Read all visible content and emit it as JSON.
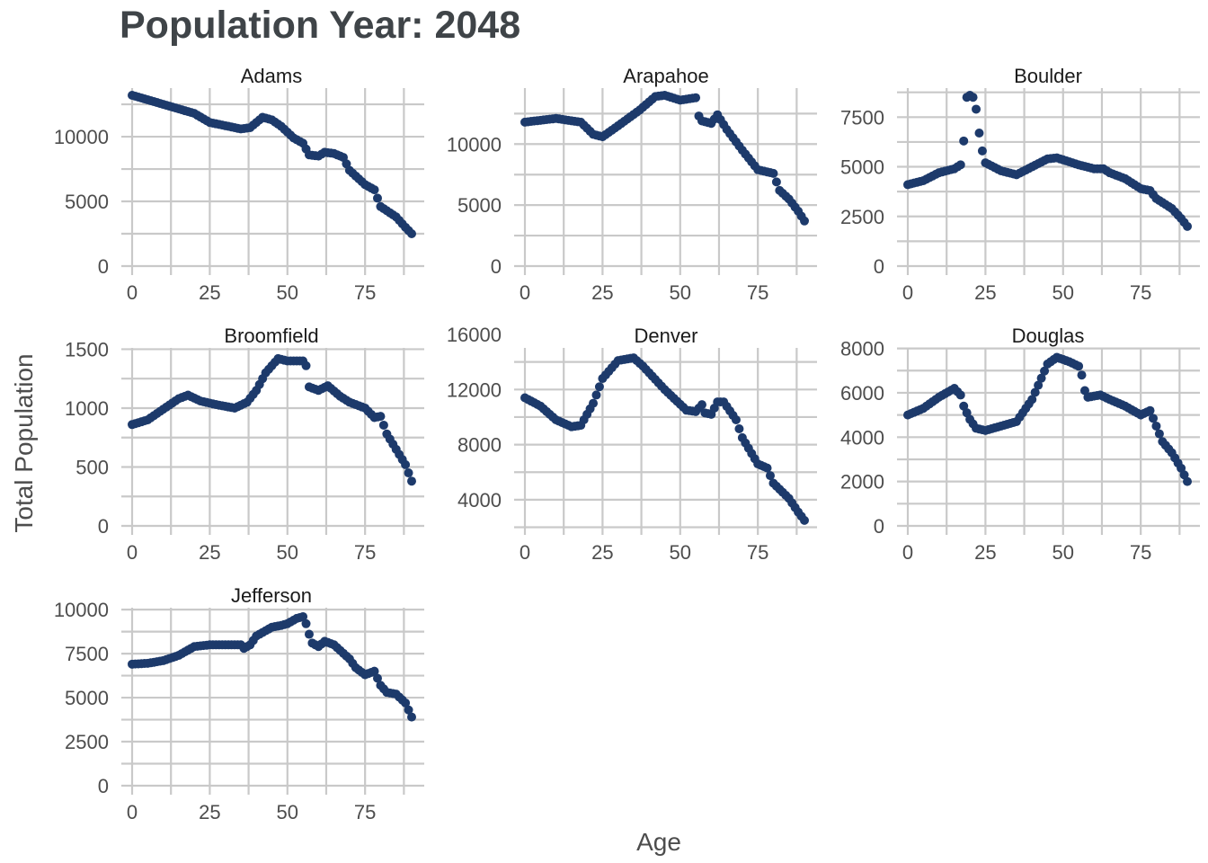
{
  "title": "Population Year:  2048",
  "xlabel": "Age",
  "ylabel": "Total Population",
  "colors": {
    "point": "#1d3a6b",
    "grid": "#c9c9c9",
    "title": "#3f4448",
    "tick_text": "#4d4d4d"
  },
  "chart_data": [
    {
      "type": "scatter",
      "panel": "Adams",
      "xlim": [
        0,
        90
      ],
      "ylim": [
        0,
        13200
      ],
      "xticks": [
        0,
        25,
        50,
        75
      ],
      "yticks": [
        0,
        5000,
        10000
      ],
      "ytick_labels": [
        "0",
        "5000",
        "10000"
      ],
      "points": [
        [
          0,
          13200
        ],
        [
          10,
          12500
        ],
        [
          20,
          11800
        ],
        [
          25,
          11100
        ],
        [
          35,
          10600
        ],
        [
          38,
          10700
        ],
        [
          42,
          11500
        ],
        [
          45,
          11300
        ],
        [
          48,
          10800
        ],
        [
          52,
          9900
        ],
        [
          55,
          9500
        ],
        [
          57,
          8600
        ],
        [
          60,
          8500
        ],
        [
          62,
          8800
        ],
        [
          65,
          8700
        ],
        [
          68,
          8400
        ],
        [
          70,
          7400
        ],
        [
          75,
          6300
        ],
        [
          78,
          5900
        ],
        [
          80,
          4600
        ],
        [
          85,
          3800
        ],
        [
          88,
          3000
        ],
        [
          90,
          2500
        ]
      ]
    },
    {
      "type": "scatter",
      "panel": "Arapahoe",
      "xlim": [
        0,
        90
      ],
      "ylim": [
        0,
        14000
      ],
      "xticks": [
        0,
        25,
        50,
        75
      ],
      "yticks": [
        0,
        5000,
        10000
      ],
      "ytick_labels": [
        "0",
        "5000",
        "10000"
      ],
      "points": [
        [
          0,
          11800
        ],
        [
          10,
          12100
        ],
        [
          18,
          11800
        ],
        [
          22,
          10800
        ],
        [
          25,
          10600
        ],
        [
          30,
          11500
        ],
        [
          37,
          12800
        ],
        [
          42,
          13900
        ],
        [
          45,
          14000
        ],
        [
          50,
          13600
        ],
        [
          55,
          13800
        ],
        [
          56,
          12300
        ],
        [
          57,
          11900
        ],
        [
          60,
          11700
        ],
        [
          62,
          12400
        ],
        [
          65,
          11200
        ],
        [
          70,
          9500
        ],
        [
          75,
          7900
        ],
        [
          80,
          7600
        ],
        [
          82,
          6200
        ],
        [
          85,
          5500
        ],
        [
          88,
          4500
        ],
        [
          90,
          3700
        ]
      ]
    },
    {
      "type": "scatter",
      "panel": "Boulder",
      "xlim": [
        0,
        90
      ],
      "ylim": [
        0,
        8600
      ],
      "xticks": [
        0,
        25,
        50,
        75
      ],
      "yticks": [
        0,
        2500,
        5000,
        7500
      ],
      "ytick_labels": [
        "0",
        "2500",
        "5000",
        "7500"
      ],
      "points": [
        [
          0,
          4100
        ],
        [
          5,
          4300
        ],
        [
          10,
          4700
        ],
        [
          15,
          4900
        ],
        [
          17,
          5100
        ],
        [
          18,
          6300
        ],
        [
          19,
          8500
        ],
        [
          20,
          8600
        ],
        [
          21,
          8500
        ],
        [
          22,
          7900
        ],
        [
          23,
          6700
        ],
        [
          24,
          5800
        ],
        [
          25,
          5200
        ],
        [
          30,
          4800
        ],
        [
          35,
          4600
        ],
        [
          40,
          5000
        ],
        [
          45,
          5400
        ],
        [
          48,
          5450
        ],
        [
          55,
          5100
        ],
        [
          60,
          4900
        ],
        [
          63,
          4900
        ],
        [
          65,
          4700
        ],
        [
          70,
          4400
        ],
        [
          75,
          3900
        ],
        [
          78,
          3800
        ],
        [
          80,
          3400
        ],
        [
          85,
          2900
        ],
        [
          88,
          2400
        ],
        [
          90,
          2000
        ]
      ]
    },
    {
      "type": "scatter",
      "panel": "Broomfield",
      "xlim": [
        0,
        90
      ],
      "ylim": [
        0,
        1450
      ],
      "xticks": [
        0,
        25,
        50,
        75
      ],
      "yticks": [
        0,
        500,
        1000,
        1500
      ],
      "ytick_labels": [
        "0",
        "500",
        "1000",
        "1500"
      ],
      "points": [
        [
          0,
          860
        ],
        [
          5,
          900
        ],
        [
          10,
          990
        ],
        [
          15,
          1080
        ],
        [
          18,
          1110
        ],
        [
          22,
          1060
        ],
        [
          27,
          1030
        ],
        [
          33,
          1000
        ],
        [
          37,
          1050
        ],
        [
          40,
          1150
        ],
        [
          43,
          1300
        ],
        [
          47,
          1420
        ],
        [
          50,
          1400
        ],
        [
          55,
          1400
        ],
        [
          56,
          1360
        ],
        [
          57,
          1180
        ],
        [
          60,
          1150
        ],
        [
          63,
          1190
        ],
        [
          67,
          1100
        ],
        [
          70,
          1050
        ],
        [
          75,
          1000
        ],
        [
          78,
          920
        ],
        [
          80,
          930
        ],
        [
          82,
          780
        ],
        [
          85,
          650
        ],
        [
          88,
          520
        ],
        [
          90,
          380
        ]
      ]
    },
    {
      "type": "scatter",
      "panel": "Denver",
      "xlim": [
        0,
        90
      ],
      "ylim": [
        2100,
        14500
      ],
      "xticks": [
        0,
        25,
        50,
        75
      ],
      "yticks": [
        4000,
        8000,
        12000,
        16000
      ],
      "ytick_labels": [
        "4000",
        "8000",
        "12000",
        "16000"
      ],
      "points": [
        [
          0,
          11400
        ],
        [
          5,
          10800
        ],
        [
          10,
          9800
        ],
        [
          15,
          9300
        ],
        [
          18,
          9400
        ],
        [
          22,
          11000
        ],
        [
          25,
          12800
        ],
        [
          30,
          14100
        ],
        [
          35,
          14300
        ],
        [
          38,
          13700
        ],
        [
          45,
          12000
        ],
        [
          52,
          10500
        ],
        [
          55,
          10400
        ],
        [
          57,
          10900
        ],
        [
          58,
          10300
        ],
        [
          60,
          10200
        ],
        [
          62,
          11100
        ],
        [
          64,
          11100
        ],
        [
          68,
          9800
        ],
        [
          70,
          8500
        ],
        [
          75,
          6600
        ],
        [
          78,
          6300
        ],
        [
          80,
          5200
        ],
        [
          85,
          4100
        ],
        [
          88,
          3100
        ],
        [
          90,
          2500
        ]
      ]
    },
    {
      "type": "scatter",
      "panel": "Douglas",
      "xlim": [
        0,
        90
      ],
      "ylim": [
        0,
        7700
      ],
      "xticks": [
        0,
        25,
        50,
        75
      ],
      "yticks": [
        0,
        2000,
        4000,
        6000,
        8000
      ],
      "ytick_labels": [
        "0",
        "2000",
        "4000",
        "6000",
        "8000"
      ],
      "points": [
        [
          0,
          5000
        ],
        [
          5,
          5300
        ],
        [
          10,
          5800
        ],
        [
          15,
          6200
        ],
        [
          17,
          5900
        ],
        [
          18,
          5400
        ],
        [
          20,
          4800
        ],
        [
          22,
          4400
        ],
        [
          25,
          4300
        ],
        [
          30,
          4500
        ],
        [
          35,
          4700
        ],
        [
          40,
          5700
        ],
        [
          45,
          7300
        ],
        [
          48,
          7600
        ],
        [
          52,
          7400
        ],
        [
          55,
          7200
        ],
        [
          56,
          6800
        ],
        [
          57,
          6100
        ],
        [
          58,
          5800
        ],
        [
          62,
          5900
        ],
        [
          65,
          5700
        ],
        [
          70,
          5400
        ],
        [
          75,
          5000
        ],
        [
          78,
          5200
        ],
        [
          80,
          4500
        ],
        [
          82,
          3800
        ],
        [
          85,
          3300
        ],
        [
          88,
          2600
        ],
        [
          90,
          2000
        ]
      ]
    },
    {
      "type": "scatter",
      "panel": "Jefferson",
      "xlim": [
        0,
        90
      ],
      "ylim": [
        0,
        9700
      ],
      "xticks": [
        0,
        25,
        50,
        75
      ],
      "yticks": [
        0,
        2500,
        5000,
        7500,
        10000
      ],
      "ytick_labels": [
        "0",
        "2500",
        "5000",
        "7500",
        "10000"
      ],
      "points": [
        [
          0,
          6900
        ],
        [
          5,
          6950
        ],
        [
          10,
          7100
        ],
        [
          15,
          7400
        ],
        [
          18,
          7700
        ],
        [
          20,
          7900
        ],
        [
          25,
          8000
        ],
        [
          30,
          8000
        ],
        [
          35,
          8000
        ],
        [
          36,
          7800
        ],
        [
          38,
          8000
        ],
        [
          40,
          8500
        ],
        [
          45,
          9000
        ],
        [
          48,
          9100
        ],
        [
          50,
          9200
        ],
        [
          53,
          9500
        ],
        [
          55,
          9600
        ],
        [
          56,
          9200
        ],
        [
          57,
          8600
        ],
        [
          58,
          8100
        ],
        [
          60,
          7900
        ],
        [
          62,
          8200
        ],
        [
          65,
          8000
        ],
        [
          70,
          7200
        ],
        [
          72,
          6700
        ],
        [
          75,
          6300
        ],
        [
          78,
          6500
        ],
        [
          80,
          5700
        ],
        [
          82,
          5300
        ],
        [
          85,
          5200
        ],
        [
          88,
          4700
        ],
        [
          90,
          3900
        ]
      ]
    }
  ]
}
